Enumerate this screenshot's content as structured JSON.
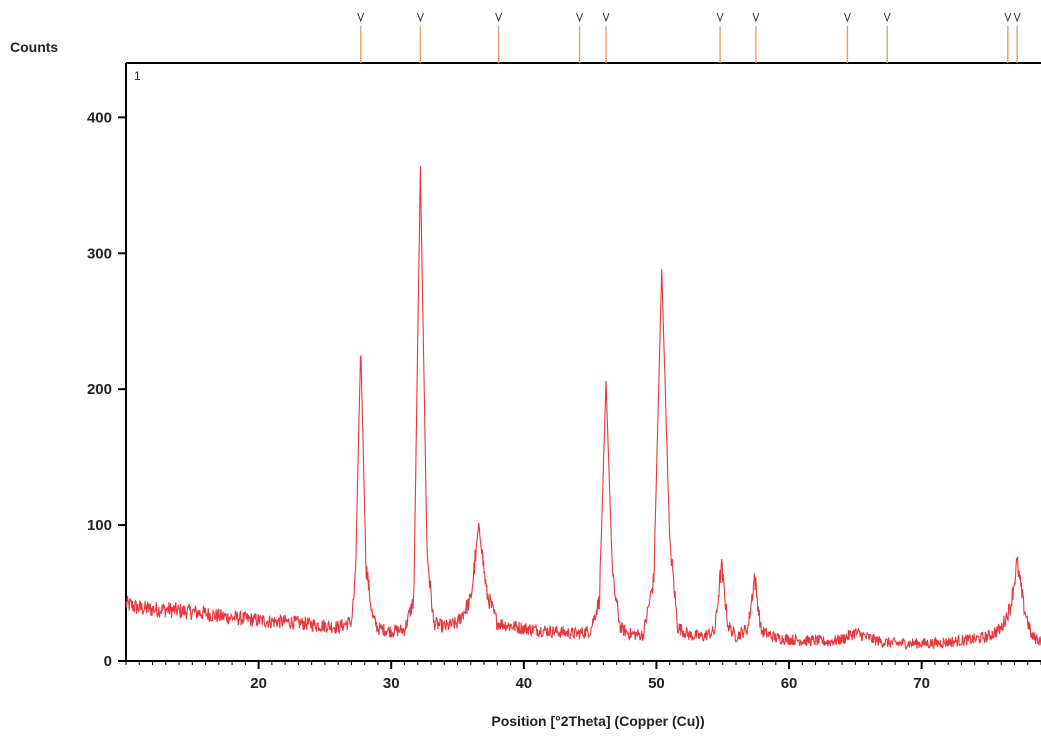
{
  "chart_data": {
    "type": "line",
    "ylabel": "Counts",
    "xlabel": "Position [°2Theta] (Copper (Cu))",
    "panel_label": "1",
    "xlim": [
      10,
      79
    ],
    "ylim": [
      0,
      440
    ],
    "x_ticks": [
      20,
      30,
      40,
      50,
      60,
      70
    ],
    "y_ticks": [
      0,
      100,
      200,
      300,
      400
    ],
    "grid": false,
    "colors": {
      "pattern": "#e8363c",
      "marker_line": "#e8a060",
      "axis": "#000000"
    },
    "reference_markers": [
      27.7,
      32.2,
      38.1,
      44.2,
      46.2,
      54.8,
      57.5,
      64.4,
      67.4,
      76.5,
      77.2
    ],
    "peaks": [
      {
        "x": 27.7,
        "y": 232
      },
      {
        "x": 32.2,
        "y": 362
      },
      {
        "x": 36.6,
        "y": 100
      },
      {
        "x": 46.2,
        "y": 205
      },
      {
        "x": 50.4,
        "y": 288
      },
      {
        "x": 54.9,
        "y": 70
      },
      {
        "x": 57.4,
        "y": 62
      },
      {
        "x": 77.2,
        "y": 72
      }
    ],
    "series": [
      {
        "x": [
          10,
          11,
          12,
          13,
          14,
          15,
          16,
          17,
          18,
          19,
          20,
          21,
          22,
          23,
          24,
          25,
          26,
          27,
          27.3,
          27.7,
          28.1,
          28.6,
          29,
          30,
          31,
          31.7,
          32.2,
          32.7,
          33.2,
          34,
          35,
          36,
          36.6,
          37.2,
          38,
          39,
          40,
          41,
          42,
          43,
          44,
          45,
          45.7,
          46.2,
          46.7,
          47.3,
          48,
          49,
          49.8,
          50.4,
          51,
          51.6,
          52.5,
          53.5,
          54.4,
          54.9,
          55.4,
          56,
          56.9,
          57.4,
          57.9,
          59,
          60,
          61,
          62,
          63,
          64,
          65,
          66,
          67,
          68,
          69,
          70,
          71,
          72,
          73,
          74,
          75,
          76,
          76.7,
          77.2,
          77.7,
          78.3,
          79
        ],
        "y": [
          42,
          39,
          38,
          38,
          37,
          36,
          35,
          33,
          32,
          31,
          30,
          29,
          29,
          28,
          27,
          26,
          25,
          29,
          60,
          232,
          70,
          32,
          24,
          22,
          23,
          45,
          362,
          80,
          28,
          25,
          28,
          45,
          100,
          50,
          28,
          26,
          24,
          23,
          22,
          21,
          20,
          22,
          45,
          205,
          60,
          24,
          20,
          19,
          60,
          288,
          90,
          25,
          19,
          18,
          22,
          70,
          26,
          18,
          24,
          62,
          22,
          17,
          16,
          15,
          15,
          14,
          16,
          21,
          17,
          14,
          13,
          13,
          13,
          13,
          14,
          15,
          16,
          18,
          24,
          40,
          72,
          40,
          18,
          15
        ]
      }
    ]
  }
}
